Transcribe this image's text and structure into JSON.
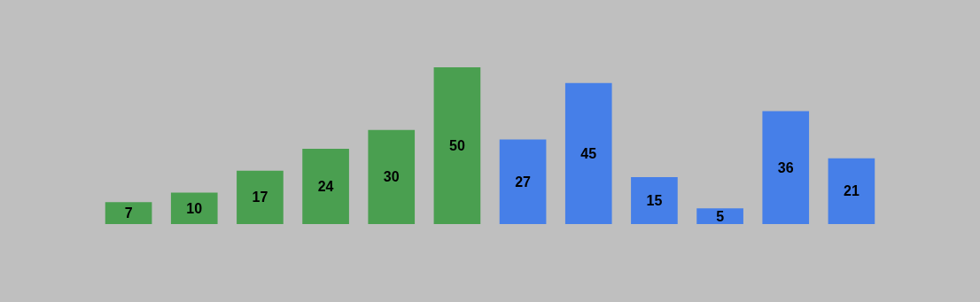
{
  "chart_data": {
    "type": "bar",
    "categories": [
      null,
      null,
      null,
      null,
      null,
      null,
      null,
      null,
      null,
      null,
      null,
      null
    ],
    "values": [
      7,
      10,
      17,
      24,
      30,
      50,
      27,
      45,
      15,
      5,
      36,
      21
    ],
    "colors": [
      "#4a9f50",
      "#4a9f50",
      "#4a9f50",
      "#4a9f50",
      "#4a9f50",
      "#4a9f50",
      "#467fe8",
      "#467fe8",
      "#467fe8",
      "#467fe8",
      "#467fe8",
      "#467fe8"
    ],
    "data_labels": true
  }
}
